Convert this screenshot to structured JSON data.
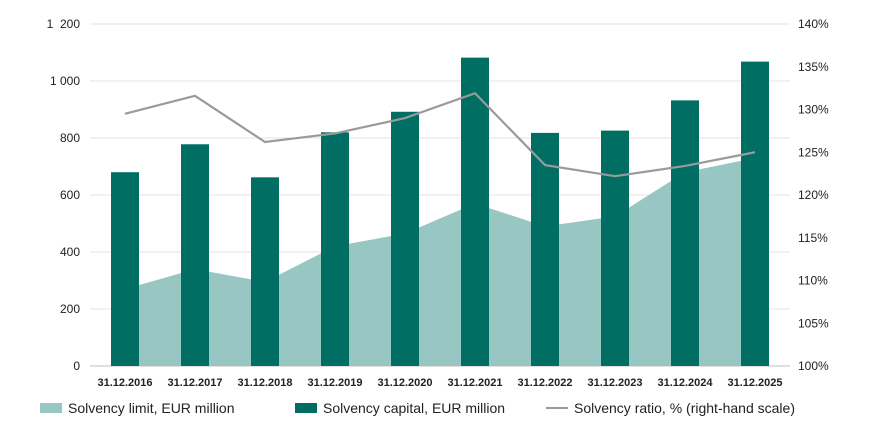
{
  "chart_data": {
    "type": "bar",
    "categories": [
      "31.12.2016",
      "31.12.2017",
      "31.12.2018",
      "31.12.2019",
      "31.12.2020",
      "31.12.2021",
      "31.12.2022",
      "31.12.2023",
      "31.12.2024",
      "31.12.2025"
    ],
    "series": [
      {
        "name": "Solvency limit, EUR million",
        "kind": "area",
        "axis": "left",
        "color": "#97c6c3",
        "values": [
          270,
          340,
          295,
          420,
          465,
          570,
          490,
          525,
          680,
          730
        ]
      },
      {
        "name": "Solvency capital, EUR million",
        "kind": "bar",
        "axis": "left",
        "color": "#006e62",
        "values": [
          680,
          778,
          662,
          820,
          892,
          1082,
          818,
          826,
          932,
          1068
        ]
      },
      {
        "name": "Solvency ratio, % (right-hand scale)",
        "kind": "line",
        "axis": "right",
        "color": "#9a9a9a",
        "values": [
          129.5,
          131.6,
          126.2,
          127.2,
          129.0,
          131.9,
          123.5,
          122.2,
          123.4,
          125.0
        ]
      }
    ],
    "y_left": {
      "min": 0,
      "max": 1200,
      "ticks": [
        0,
        200,
        400,
        600,
        800,
        1000,
        1200
      ],
      "tick_labels": [
        "0",
        "200",
        "400",
        "600",
        "800",
        "1 000",
        "1  200"
      ]
    },
    "y_right": {
      "min": 100,
      "max": 140,
      "ticks": [
        100,
        105,
        110,
        115,
        120,
        125,
        130,
        135,
        140
      ],
      "tick_labels": [
        "100%",
        "105%",
        "110%",
        "115%",
        "120%",
        "125%",
        "130%",
        "135%",
        "140%"
      ]
    },
    "grid": true,
    "legend_position": "bottom"
  }
}
